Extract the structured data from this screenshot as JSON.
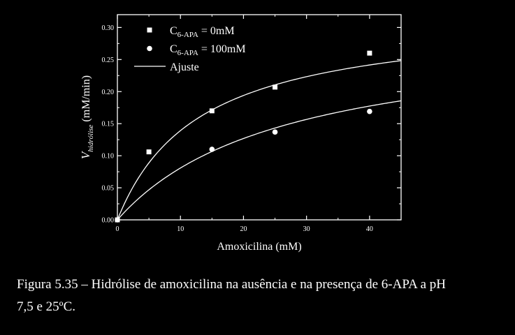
{
  "chart_data": {
    "type": "scatter",
    "xlabel": "Amoxicilina (mM)",
    "ylabel": {
      "symbol": "V",
      "subscript": "hidrólise",
      "unit": " (mM/min)"
    },
    "xlim": [
      0,
      45
    ],
    "ylim": [
      0,
      0.32
    ],
    "x_ticks": [
      0,
      10,
      20,
      30,
      40
    ],
    "y_ticks": [
      0.0,
      0.05,
      0.1,
      0.15,
      0.2,
      0.25,
      0.3
    ],
    "grid": false,
    "legend_position": "top-left",
    "series": [
      {
        "name": {
          "base": "C",
          "sub": "6-APA",
          "suffix": " = 0mM"
        },
        "marker": "square",
        "x": [
          0,
          5,
          15,
          25,
          40
        ],
        "y": [
          0.0,
          0.106,
          0.17,
          0.207,
          0.26
        ]
      },
      {
        "name": {
          "base": "C",
          "sub": "6-APA",
          "suffix": " = 100mM"
        },
        "marker": "circle",
        "x": [
          0,
          15,
          25,
          40
        ],
        "y": [
          0.0,
          0.11,
          0.137,
          0.169
        ]
      }
    ],
    "fit": {
      "name": "Ajuste",
      "curves": [
        {
          "vmax": 0.32,
          "km": 13.0
        },
        {
          "vmax": 0.295,
          "km": 26.5
        }
      ]
    },
    "colors": {
      "background": "#000000",
      "foreground": "#ffffff"
    }
  },
  "caption": {
    "line1": "Figura 5.35 – Hidrólise de amoxicilina na ausência e na presença de 6-APA a pH",
    "line2": "7,5 e 25ºC."
  }
}
